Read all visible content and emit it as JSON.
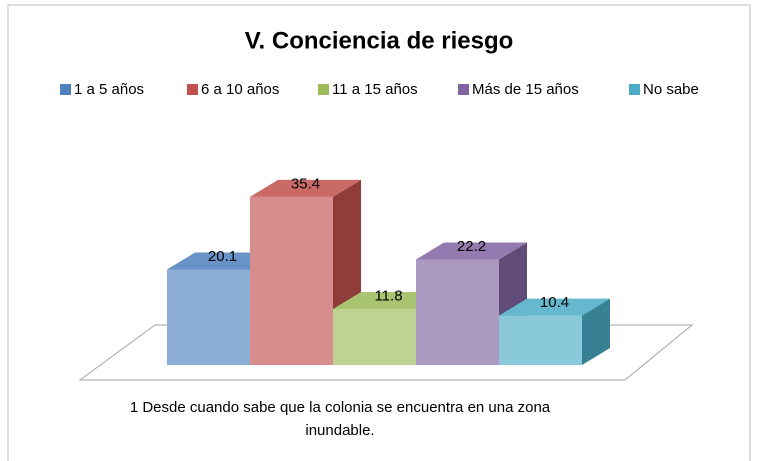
{
  "chart_data": {
    "type": "bar3d",
    "title": "V. Conciencia de riesgo",
    "categories": [
      "1 Desde cuando sabe que la colonia se encuentra en una zona inundable."
    ],
    "series": [
      {
        "name": "1 a 5 años",
        "color": "#4f81bd",
        "values": [
          20.1
        ]
      },
      {
        "name": "6 a 10 años",
        "color": "#c0504d",
        "values": [
          35.4
        ]
      },
      {
        "name": "11 a 15 años",
        "color": "#9bbb59",
        "values": [
          11.8
        ]
      },
      {
        "name": "Más de 15 años",
        "color": "#8064a2",
        "values": [
          22.2
        ]
      },
      {
        "name": "No sabe",
        "color": "#4bacc6",
        "values": [
          10.4
        ]
      }
    ],
    "legend": "top"
  }
}
